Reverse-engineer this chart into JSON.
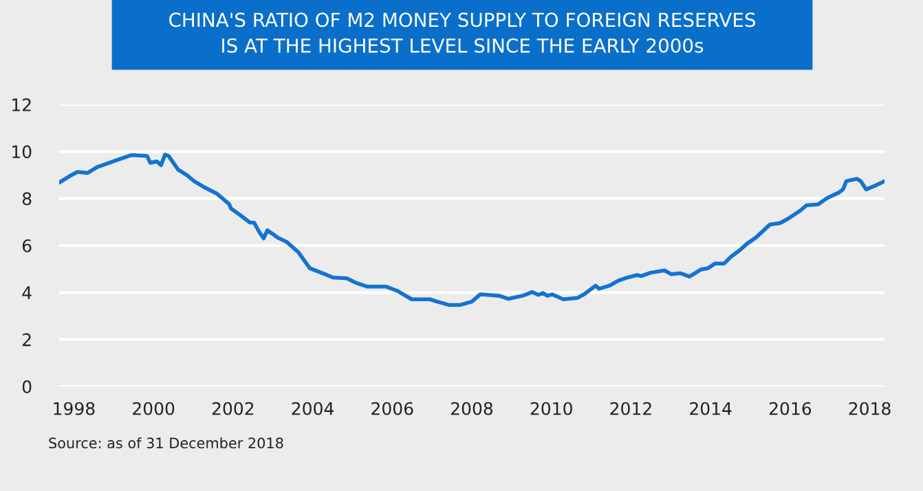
{
  "chart_data": {
    "type": "line",
    "title": "CHINA'S RATIO OF M2 MONEY SUPPLY TO FOREIGN RESERVES\nIS AT THE HIGHEST LEVEL SINCE THE EARLY 2000s",
    "annotations": [
      "Source: as of 31 December 2018"
    ],
    "x": [
      1997.63,
      1997.88,
      1998.09,
      1998.35,
      1998.58,
      1998.99,
      1999.45,
      1999.84,
      1999.92,
      2000.09,
      2000.19,
      2000.29,
      2000.38,
      2000.62,
      2000.85,
      2001.02,
      2001.31,
      2001.6,
      2001.9,
      2001.95,
      2002.19,
      2002.42,
      2002.53,
      2002.65,
      2002.77,
      2002.86,
      2003.12,
      2003.35,
      2003.64,
      2003.93,
      2004.22,
      2004.51,
      2004.86,
      2005.09,
      2005.38,
      2005.85,
      2006.14,
      2006.49,
      2006.95,
      2007.13,
      2007.42,
      2007.71,
      2008.0,
      2008.21,
      2008.4,
      2008.69,
      2008.92,
      2009.27,
      2009.52,
      2009.67,
      2009.79,
      2009.9,
      2010.02,
      2010.3,
      2010.65,
      2010.82,
      2011.11,
      2011.2,
      2011.46,
      2011.69,
      2011.92,
      2012.15,
      2012.26,
      2012.49,
      2012.84,
      2013.01,
      2013.24,
      2013.47,
      2013.76,
      2013.93,
      2014.11,
      2014.34,
      2014.51,
      2014.74,
      2014.91,
      2015.14,
      2015.49,
      2015.74,
      2015.95,
      2016.24,
      2016.41,
      2016.7,
      2016.93,
      2017.22,
      2017.33,
      2017.41,
      2017.68,
      2017.77,
      2017.91,
      2018.14,
      2018.35
    ],
    "series": [
      {
        "color": "#1473d0",
        "values": [
          8.68,
          8.94,
          9.13,
          9.09,
          9.33,
          9.58,
          9.85,
          9.81,
          9.52,
          9.58,
          9.42,
          9.87,
          9.81,
          9.23,
          8.98,
          8.74,
          8.45,
          8.2,
          7.77,
          7.57,
          7.28,
          6.98,
          6.97,
          6.6,
          6.3,
          6.65,
          6.34,
          6.15,
          5.72,
          5.03,
          4.84,
          4.64,
          4.6,
          4.41,
          4.25,
          4.25,
          4.06,
          3.71,
          3.71,
          3.61,
          3.47,
          3.47,
          3.61,
          3.92,
          3.9,
          3.86,
          3.73,
          3.86,
          4.02,
          3.9,
          3.98,
          3.86,
          3.92,
          3.71,
          3.77,
          3.92,
          4.29,
          4.16,
          4.29,
          4.51,
          4.64,
          4.74,
          4.7,
          4.84,
          4.94,
          4.78,
          4.82,
          4.68,
          4.98,
          5.03,
          5.23,
          5.23,
          5.52,
          5.81,
          6.07,
          6.34,
          6.89,
          6.95,
          7.14,
          7.47,
          7.71,
          7.75,
          8.02,
          8.25,
          8.39,
          8.74,
          8.84,
          8.74,
          8.39,
          8.55,
          8.72
        ]
      }
    ],
    "xlim": [
      1997.63,
      2018.37
    ],
    "xticks": [
      1998,
      2000,
      2002,
      2004,
      2006,
      2008,
      2010,
      2012,
      2014,
      2016,
      2018
    ],
    "ylim": [
      0,
      12
    ],
    "yticks": [
      0,
      2,
      4,
      6,
      8,
      10,
      12
    ],
    "grid": "y",
    "marker": "none",
    "line_style": "solid"
  }
}
